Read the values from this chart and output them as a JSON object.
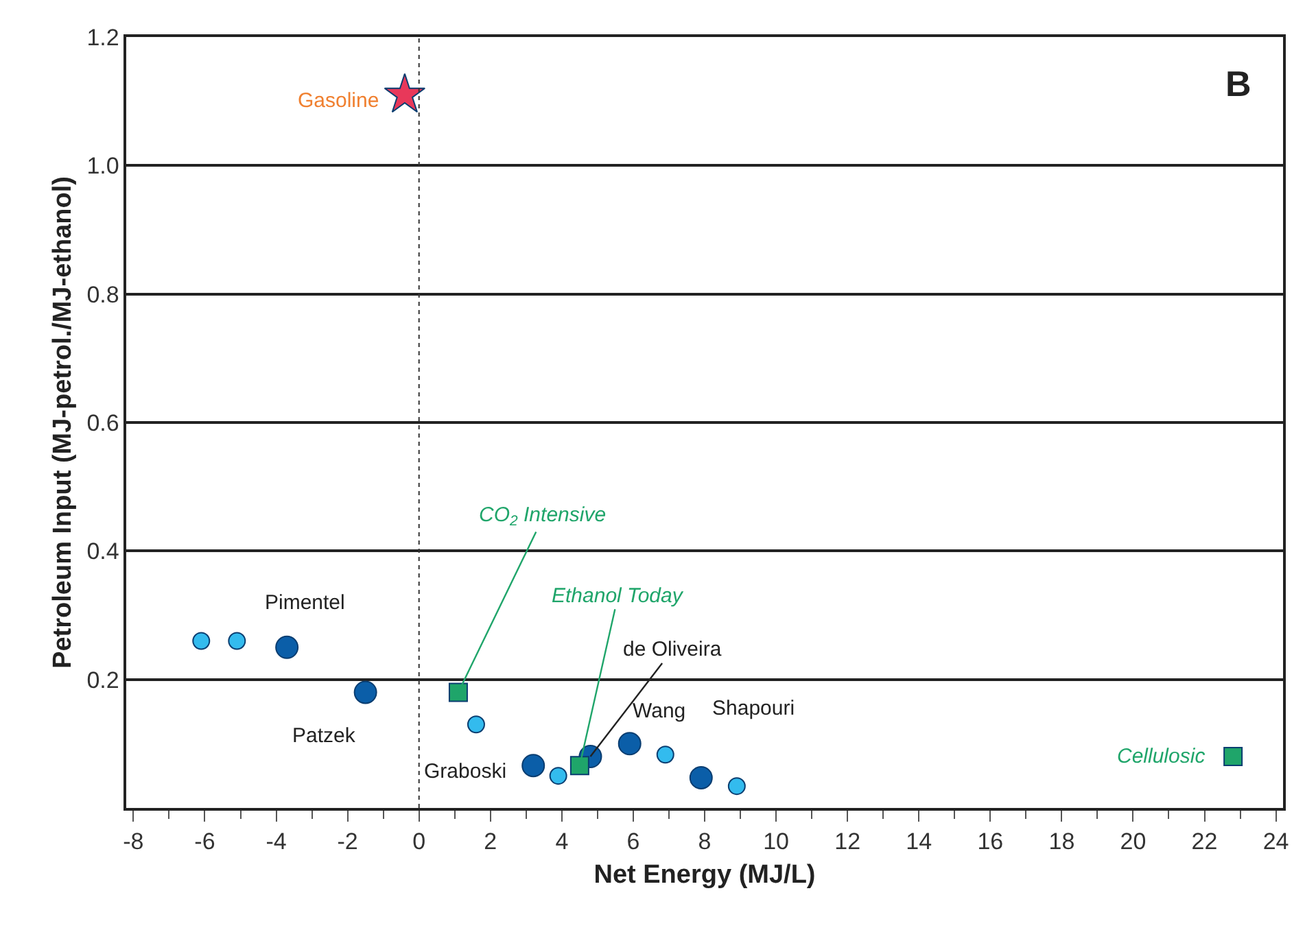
{
  "chart_data": {
    "type": "scatter",
    "xlabel": "Net Energy (MJ/L)",
    "ylabel": "Petroleum Input (MJ-petrol./MJ-ethanol)",
    "xlim": [
      -8.2,
      24.2
    ],
    "xticks": [
      -8,
      -6,
      -4,
      -2,
      0,
      2,
      4,
      6,
      8,
      10,
      12,
      14,
      16,
      18,
      20,
      22,
      24
    ],
    "ylim": [
      0,
      1.2
    ],
    "yticks": [
      {
        "value": 0,
        "label": null
      },
      0.2,
      0.4,
      0.6,
      0.8,
      {
        "value": 1,
        "label": "1.0"
      },
      1.2
    ],
    "grid": "y",
    "series": [
      {
        "color": "#33bbee",
        "marker": "circle",
        "x": [
          -6.1,
          -5.1,
          1.6,
          3.9,
          6.9,
          8.9
        ],
        "values": [
          0.26,
          0.26,
          0.13,
          0.05,
          0.083,
          0.034
        ]
      },
      {
        "color": "#0b5ea8",
        "marker": "circle",
        "x": [
          -3.7,
          -1.5,
          3.2,
          4.8,
          5.9,
          7.9
        ],
        "values": [
          0.25,
          0.18,
          0.066,
          0.08,
          0.1,
          0.047
        ]
      },
      {
        "color": "#1fa56a",
        "marker": "square",
        "x": [
          1.1,
          4.5,
          22.8
        ],
        "values": [
          0.18,
          0.066,
          0.08
        ]
      },
      {
        "color": "#e8385a",
        "marker": "star",
        "x": [
          -0.4
        ],
        "values": [
          1.11
        ]
      }
    ],
    "ref_lines": [
      {
        "axis": "x",
        "value": 0,
        "label": null,
        "line_style": "dotted",
        "color": "#333333"
      }
    ],
    "annotations": [
      {
        "text": "Pimentel",
        "x": -3.7,
        "y": 0.25
      },
      {
        "text": "Patzek",
        "x": -1.5,
        "y": 0.18
      },
      {
        "text": "Graboski",
        "x": 3.2,
        "y": 0.066
      },
      {
        "text": "de Oliveira",
        "x": 4.8,
        "y": 0.08
      },
      {
        "text": "Wang",
        "x": 5.9,
        "y": 0.1
      },
      {
        "text": "Shapouri",
        "x": 7.9,
        "y": 0.047
      },
      {
        "text": "Gasoline",
        "x": -0.4,
        "y": 1.11
      },
      {
        "text": "CO$_{2}$ Intensive",
        "x": 1.1,
        "y": 0.18
      },
      {
        "text": "Ethanol Today",
        "x": 4.5,
        "y": 0.066
      },
      {
        "text": "Cellulosic",
        "x": 22.8,
        "y": 0.08
      },
      "B"
    ]
  }
}
